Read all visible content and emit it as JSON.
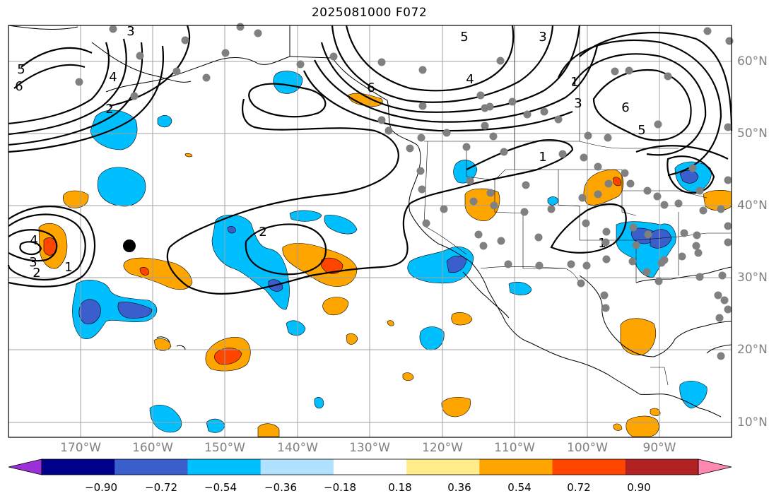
{
  "title": "2025081000 F072",
  "lon_labels": [
    "170°W",
    "160°W",
    "150°W",
    "140°W",
    "130°W",
    "120°W",
    "110°W",
    "100°W",
    "90°W"
  ],
  "lat_labels": [
    "60°N",
    "50°N",
    "40°N",
    "30°N",
    "20°N",
    "10°N"
  ],
  "colorbar": {
    "tick_labels": [
      "−0.90",
      "−0.72",
      "−0.54",
      "−0.36",
      "−0.18",
      "0.18",
      "0.36",
      "0.54",
      "0.72",
      "0.90"
    ],
    "colors": [
      "#9b30d9",
      "#00008b",
      "#3a5fcd",
      "#00bfff",
      "#b0e2ff",
      "#ffffff",
      "#ffec8b",
      "#ffa500",
      "#ff4500",
      "#b22222",
      "#ff88b0"
    ]
  },
  "contour_labels": [
    "5",
    "6",
    "4",
    "3",
    "2",
    "1",
    "6",
    "5",
    "4",
    "3",
    "6",
    "5",
    "3",
    "1",
    "1",
    "2",
    "4",
    "3",
    "2",
    "1"
  ],
  "marker_color": "#808080",
  "storm_marker_color": "#000000",
  "shading_colors": {
    "light_blue": "#00bfff",
    "mid_blue": "#3a5fcd",
    "orange": "#ffa500",
    "red_orange": "#ff4500",
    "yellow": "#ffec8b"
  }
}
